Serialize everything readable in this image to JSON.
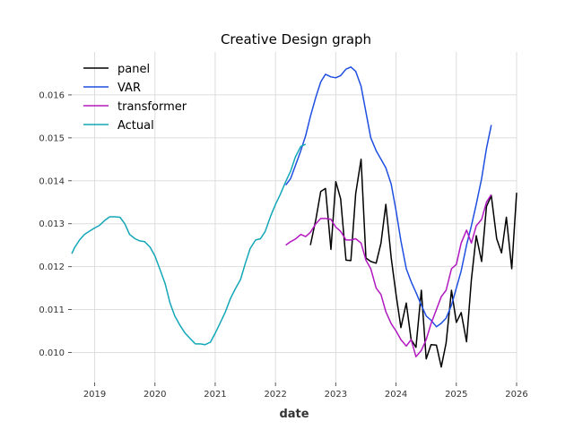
{
  "chart_data": {
    "type": "line",
    "title": "Creative Design graph",
    "xlabel": "date",
    "ylabel": "",
    "xlim": [
      2018.62,
      2026.0
    ],
    "ylim": [
      0.0093,
      0.017
    ],
    "x_ticks": [
      2019,
      2020,
      2021,
      2022,
      2023,
      2024,
      2025,
      2026
    ],
    "x_tick_labels": [
      "2019",
      "2020",
      "2021",
      "2022",
      "2023",
      "2024",
      "2025",
      "2026"
    ],
    "y_ticks": [
      0.01,
      0.011,
      0.012,
      0.013,
      0.014,
      0.015,
      0.016
    ],
    "y_tick_labels": [
      "0.010",
      "0.011",
      "0.012",
      "0.013",
      "0.014",
      "0.015",
      "0.016"
    ],
    "grid": true,
    "legend_position": "top-left",
    "series": [
      {
        "name": "panel",
        "color": "#000000",
        "x": [
          2022.58,
          2022.67,
          2022.75,
          2022.83,
          2022.92,
          2023.0,
          2023.08,
          2023.17,
          2023.25,
          2023.33,
          2023.42,
          2023.5,
          2023.58,
          2023.67,
          2023.75,
          2023.83,
          2023.92,
          2024.0,
          2024.08,
          2024.17,
          2024.25,
          2024.33,
          2024.42,
          2024.5,
          2024.58,
          2024.67,
          2024.75,
          2024.83,
          2024.92,
          2025.0,
          2025.08,
          2025.17,
          2025.25,
          2025.33,
          2025.42,
          2025.5,
          2025.58,
          2025.67,
          2025.75,
          2025.83,
          2025.92,
          2026.0
        ],
        "values": [
          0.0125,
          0.0131,
          0.01375,
          0.01382,
          0.0124,
          0.01398,
          0.01358,
          0.01215,
          0.01214,
          0.0137,
          0.0145,
          0.0122,
          0.01212,
          0.01208,
          0.01255,
          0.01345,
          0.0122,
          0.01135,
          0.01058,
          0.01115,
          0.0103,
          0.01012,
          0.01145,
          0.00985,
          0.01018,
          0.01017,
          0.00966,
          0.01022,
          0.01145,
          0.0107,
          0.01093,
          0.01025,
          0.0117,
          0.01272,
          0.01212,
          0.0134,
          0.01365,
          0.01265,
          0.01232,
          0.01315,
          0.01195,
          0.01372
        ]
      },
      {
        "name": "VAR",
        "color": "#1f4fe0",
        "x": [
          2022.17,
          2022.25,
          2022.33,
          2022.42,
          2022.5,
          2022.58,
          2022.67,
          2022.75,
          2022.83,
          2022.92,
          2023.0,
          2023.08,
          2023.17,
          2023.25,
          2023.33,
          2023.42,
          2023.5,
          2023.58,
          2023.67,
          2023.75,
          2023.83,
          2023.92,
          2024.0,
          2024.08,
          2024.17,
          2024.25,
          2024.33,
          2024.42,
          2024.5,
          2024.58,
          2024.67,
          2024.75,
          2024.83,
          2024.92,
          2025.0,
          2025.08,
          2025.17,
          2025.25,
          2025.33,
          2025.42,
          2025.5,
          2025.58
        ],
        "values": [
          0.0139,
          0.01405,
          0.01435,
          0.0147,
          0.01505,
          0.0155,
          0.01595,
          0.0163,
          0.01648,
          0.01642,
          0.0164,
          0.01645,
          0.0166,
          0.01665,
          0.01655,
          0.0162,
          0.0156,
          0.015,
          0.0147,
          0.0145,
          0.0143,
          0.01392,
          0.0133,
          0.0126,
          0.01195,
          0.01165,
          0.0114,
          0.0111,
          0.01085,
          0.01075,
          0.0106,
          0.01068,
          0.0108,
          0.0111,
          0.0115,
          0.0119,
          0.0125,
          0.01295,
          0.01345,
          0.01405,
          0.01475,
          0.0153
        ]
      },
      {
        "name": "transformer",
        "color": "#b218c0",
        "x": [
          2022.17,
          2022.25,
          2022.33,
          2022.42,
          2022.5,
          2022.58,
          2022.67,
          2022.75,
          2022.83,
          2022.92,
          2023.0,
          2023.08,
          2023.17,
          2023.25,
          2023.33,
          2023.42,
          2023.5,
          2023.58,
          2023.67,
          2023.75,
          2023.83,
          2023.92,
          2024.0,
          2024.08,
          2024.17,
          2024.25,
          2024.33,
          2024.42,
          2024.5,
          2024.58,
          2024.67,
          2024.75,
          2024.83,
          2024.92,
          2025.0,
          2025.08,
          2025.17,
          2025.25,
          2025.33,
          2025.42,
          2025.5,
          2025.58
        ],
        "values": [
          0.0125,
          0.01258,
          0.01264,
          0.01275,
          0.0127,
          0.0128,
          0.013,
          0.01312,
          0.01312,
          0.0131,
          0.01292,
          0.01282,
          0.01262,
          0.01262,
          0.01265,
          0.01255,
          0.01215,
          0.01195,
          0.0115,
          0.01135,
          0.01095,
          0.01067,
          0.0105,
          0.0103,
          0.01015,
          0.0103,
          0.0099,
          0.01005,
          0.0103,
          0.01067,
          0.011,
          0.0113,
          0.01145,
          0.01195,
          0.01205,
          0.01255,
          0.01285,
          0.01255,
          0.01295,
          0.0131,
          0.0135,
          0.01368
        ]
      },
      {
        "name": "Actual",
        "color": "#13a7b8",
        "x": [
          2018.62,
          2018.67,
          2018.75,
          2018.83,
          2018.92,
          2019.0,
          2019.08,
          2019.17,
          2019.25,
          2019.33,
          2019.42,
          2019.5,
          2019.58,
          2019.67,
          2019.75,
          2019.83,
          2019.92,
          2020.0,
          2020.08,
          2020.17,
          2020.25,
          2020.33,
          2020.42,
          2020.5,
          2020.58,
          2020.67,
          2020.75,
          2020.83,
          2020.92,
          2021.0,
          2021.08,
          2021.17,
          2021.25,
          2021.33,
          2021.42,
          2021.5,
          2021.58,
          2021.67,
          2021.75,
          2021.83,
          2021.92,
          2022.0,
          2022.08,
          2022.17,
          2022.25,
          2022.33,
          2022.42,
          2022.5
        ],
        "values": [
          0.0123,
          0.01245,
          0.01262,
          0.01275,
          0.01283,
          0.0129,
          0.01296,
          0.01308,
          0.01316,
          0.01316,
          0.01315,
          0.013,
          0.01275,
          0.01265,
          0.0126,
          0.01258,
          0.01245,
          0.01225,
          0.01195,
          0.0116,
          0.01115,
          0.01085,
          0.01062,
          0.01045,
          0.01033,
          0.0102,
          0.0102,
          0.01018,
          0.01024,
          0.01045,
          0.01068,
          0.01095,
          0.01125,
          0.01147,
          0.0117,
          0.01208,
          0.01242,
          0.01262,
          0.01265,
          0.01282,
          0.01318,
          0.01345,
          0.01368,
          0.01398,
          0.01422,
          0.01455,
          0.0148,
          0.01485
        ]
      }
    ]
  }
}
